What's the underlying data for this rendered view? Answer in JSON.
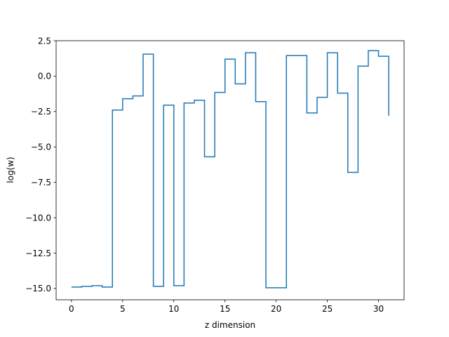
{
  "chart_data": {
    "type": "line",
    "drawstyle": "steps-post",
    "title": "",
    "xlabel": "z dimension",
    "ylabel": "log(w)",
    "xlim": [
      -1.5,
      32.5
    ],
    "ylim": [
      -15.8,
      2.5
    ],
    "grid": false,
    "x": [
      0,
      1,
      2,
      3,
      4,
      5,
      6,
      7,
      8,
      9,
      10,
      11,
      12,
      13,
      14,
      15,
      16,
      17,
      18,
      19,
      20,
      21,
      22,
      23,
      24,
      25,
      26,
      27,
      28,
      29,
      30,
      31
    ],
    "y": [
      -14.9,
      -14.85,
      -14.8,
      -14.9,
      -2.4,
      -1.6,
      -1.4,
      1.55,
      -14.85,
      -2.05,
      -14.8,
      -1.9,
      -1.7,
      -5.7,
      -1.15,
      1.2,
      -0.55,
      1.65,
      -1.8,
      -14.95,
      -14.95,
      1.45,
      1.45,
      -2.6,
      -1.5,
      1.65,
      -1.2,
      -6.8,
      0.7,
      1.8,
      1.4,
      -2.8
    ],
    "xticks": [
      0,
      5,
      10,
      15,
      20,
      25,
      30
    ],
    "xtick_labels": [
      "0",
      "5",
      "10",
      "15",
      "20",
      "25",
      "30"
    ],
    "yticks": [
      2.5,
      0.0,
      -2.5,
      -5.0,
      -7.5,
      -10.0,
      -12.5,
      -15.0
    ],
    "ytick_labels": [
      "2.5",
      "0.0",
      "−2.5",
      "−5.0",
      "−7.5",
      "−10.0",
      "−12.5",
      "−15.0"
    ],
    "series_color": "#1f77b4"
  }
}
